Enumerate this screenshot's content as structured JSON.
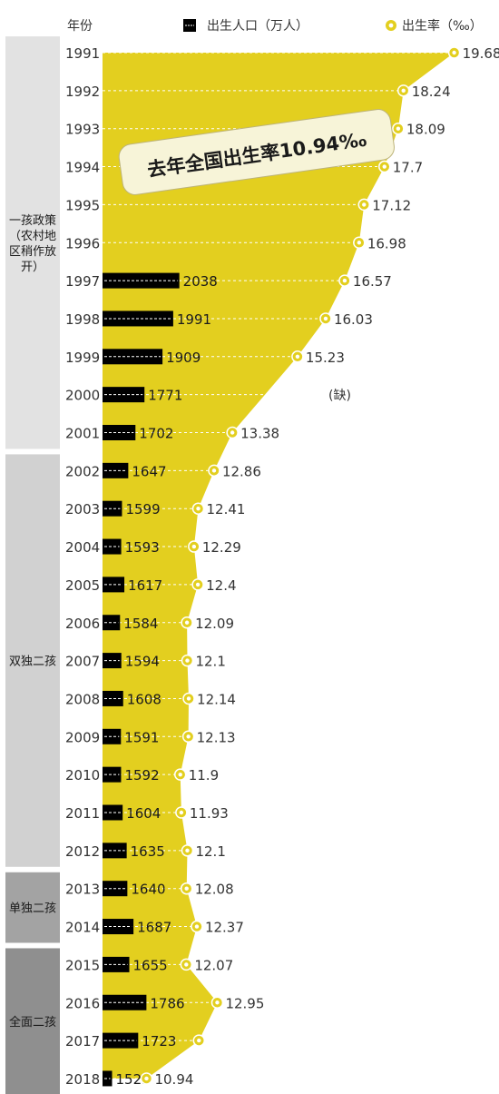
{
  "header": {
    "year_label": "年份",
    "births_legend": "出生人口（万人）",
    "rate_legend": "出生率（‰）"
  },
  "callout": "去年全国出生率10.94‰",
  "missing_label": "(缺)",
  "colors": {
    "area": "#e3cf1f",
    "bar": "#000000",
    "policy_light": "#e2e2e2",
    "policy_mid": "#d1d1d1",
    "policy_dark": "#a3a3a3",
    "policy_darker": "#8f8f8f",
    "callout_bg": "#f7f4d8",
    "text": "#333333"
  },
  "policies": [
    {
      "label": "一孩政策（农村地区稍作放开）",
      "lines": [
        "一孩政策",
        "（农村地",
        "区稍作放",
        "开）"
      ],
      "from": "1991",
      "to": "2001",
      "shade": "policy_light"
    },
    {
      "label": "双独二孩",
      "lines": [
        "双独二孩"
      ],
      "from": "2002",
      "to": "2012",
      "shade": "policy_mid"
    },
    {
      "label": "单独二孩",
      "lines": [
        "单独二孩"
      ],
      "from": "2013",
      "to": "2014",
      "shade": "policy_dark"
    },
    {
      "label": "全面二孩",
      "lines": [
        "全面二孩"
      ],
      "from": "2015",
      "to": "2018",
      "shade": "policy_darker"
    }
  ],
  "chart_data": {
    "type": "bar",
    "categories": [
      "1991",
      "1992",
      "1993",
      "1994",
      "1995",
      "1996",
      "1997",
      "1998",
      "1999",
      "2000",
      "2001",
      "2002",
      "2003",
      "2004",
      "2005",
      "2006",
      "2007",
      "2008",
      "2009",
      "2010",
      "2011",
      "2012",
      "2013",
      "2014",
      "2015",
      "2016",
      "2017",
      "2018"
    ],
    "series": [
      {
        "name": "出生人口（万人）",
        "type": "bar",
        "values": [
          null,
          null,
          null,
          null,
          null,
          null,
          2038,
          1991,
          1909,
          1771,
          1702,
          1647,
          1599,
          1593,
          1617,
          1584,
          1594,
          1608,
          1591,
          1592,
          1604,
          1635,
          1640,
          1687,
          1655,
          1786,
          1723,
          1523
        ],
        "labels": [
          "",
          "",
          "",
          "",
          "",
          "",
          "2038",
          "1991",
          "1909",
          "1771",
          "1702",
          "1647",
          "1599",
          "1593",
          "1617",
          "1584",
          "1594",
          "1608",
          "1591",
          "1592",
          "1604",
          "1635",
          "1640",
          "1687",
          "1655",
          "1786",
          "1723",
          "1523"
        ]
      },
      {
        "name": "出生率（‰）",
        "type": "area",
        "values": [
          19.68,
          18.24,
          18.09,
          17.7,
          17.12,
          16.98,
          16.57,
          16.03,
          15.23,
          null,
          13.38,
          12.86,
          12.41,
          12.29,
          12.4,
          12.09,
          12.1,
          12.14,
          12.13,
          11.9,
          11.93,
          12.1,
          12.08,
          12.37,
          12.07,
          12.95,
          12.43,
          10.94
        ],
        "labels": [
          "19.68",
          "18.24",
          "18.09",
          "17.7",
          "17.12",
          "16.98",
          "16.57",
          "16.03",
          "15.23",
          "",
          "13.38",
          "12.86",
          "12.41",
          "12.29",
          "12.4",
          "12.09",
          "12.1",
          "12.14",
          "12.13",
          "11.9",
          "11.93",
          "12.1",
          "12.08",
          "12.37",
          "12.07",
          "12.95",
          "",
          "10.94"
        ]
      }
    ],
    "orientation": "horizontal",
    "grid": "dashed"
  }
}
